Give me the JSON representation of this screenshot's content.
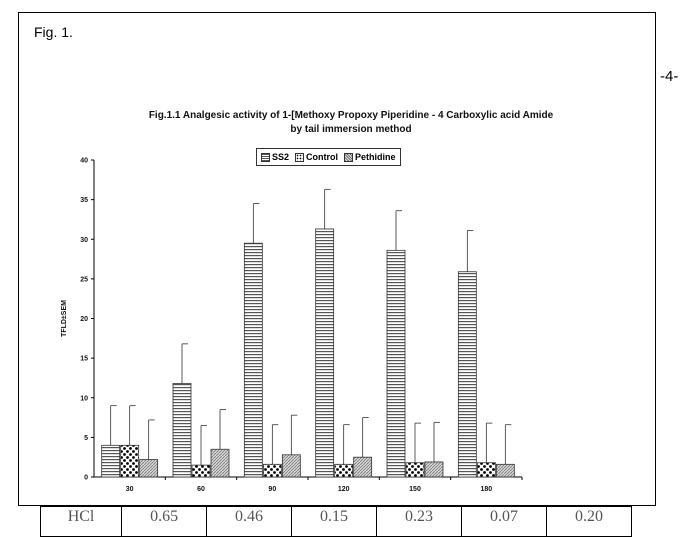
{
  "page": {
    "fig_label": "Fig. 1.",
    "page_number": "-4-"
  },
  "chart_data": {
    "type": "bar",
    "title_line1": "Fig.1.1 Analgesic activity of 1-[Methoxy Propoxy Piperidine - 4 Carboxylic acid Amide",
    "title_line2": "by tail immersion method",
    "ylabel": "TFLD±SEM",
    "xlabel": "",
    "ylim": [
      0,
      40
    ],
    "yticks": [
      0,
      5,
      10,
      15,
      20,
      25,
      30,
      35,
      40
    ],
    "categories": [
      "30",
      "60",
      "90",
      "120",
      "150",
      "180"
    ],
    "series": [
      {
        "name": "SS2",
        "values": [
          4.0,
          11.8,
          29.5,
          31.3,
          28.6,
          25.9
        ],
        "errors": [
          5.0,
          5.0,
          5.0,
          5.0,
          5.0,
          5.2
        ],
        "pattern": "hstripes"
      },
      {
        "name": "Control",
        "values": [
          4.0,
          1.5,
          1.6,
          1.6,
          1.8,
          1.8
        ],
        "errors": [
          5.0,
          5.0,
          5.0,
          5.0,
          5.0,
          5.0
        ],
        "pattern": "dots"
      },
      {
        "name": "Pethidine",
        "values": [
          2.2,
          3.5,
          2.8,
          2.5,
          1.9,
          1.6
        ],
        "errors": [
          5.0,
          5.0,
          5.0,
          5.0,
          5.0,
          5.0
        ],
        "pattern": "crosshatch"
      }
    ],
    "legend_position": "top-center",
    "grid": false
  },
  "table_strip": {
    "cells": [
      "HCl",
      "0.65",
      "0.46",
      "0.15",
      "0.23",
      "0.07",
      "0.20"
    ]
  }
}
